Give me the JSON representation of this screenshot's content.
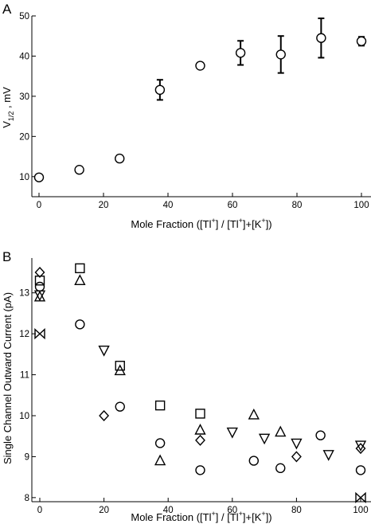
{
  "chart_data": [
    {
      "panel": "A",
      "type": "scatter",
      "xlabel": "Mole Fraction ([Tl+] / [Tl+]+[K+])",
      "ylabel": "V1/2 , mV",
      "xlim": [
        0,
        100
      ],
      "ylim": [
        5,
        50
      ],
      "xticks": [
        0,
        20,
        40,
        60,
        80,
        100
      ],
      "yticks": [
        10,
        20,
        30,
        40,
        50
      ],
      "grid": false,
      "series": [
        {
          "marker": "circle",
          "points": [
            {
              "x": 0,
              "y": 9.8,
              "err": 0
            },
            {
              "x": 12.5,
              "y": 11.7,
              "err": 0
            },
            {
              "x": 25,
              "y": 14.5,
              "err": 0.8
            },
            {
              "x": 37.5,
              "y": 31.6,
              "err": 2.5
            },
            {
              "x": 50,
              "y": 37.6,
              "err": 0
            },
            {
              "x": 62.5,
              "y": 40.8,
              "err": 3.0
            },
            {
              "x": 75,
              "y": 40.4,
              "err": 4.6
            },
            {
              "x": 87.5,
              "y": 44.5,
              "err": 4.9
            },
            {
              "x": 100,
              "y": 43.7,
              "err": 1.1
            }
          ]
        }
      ]
    },
    {
      "panel": "B",
      "type": "scatter",
      "xlabel": "Mole Fraction ([Tl+] / [Tl+]+[K+])",
      "ylabel": "Single Channel Outward Current (pA)",
      "xlim": [
        0,
        100
      ],
      "ylim": [
        7.9,
        13.85
      ],
      "xticks": [
        0,
        20,
        40,
        60,
        80,
        100
      ],
      "yticks": [
        8,
        9,
        10,
        11,
        12,
        13
      ],
      "grid": false,
      "series": [
        {
          "marker": "circle",
          "points": [
            [
              0,
              13.15
            ],
            [
              12.5,
              12.23
            ],
            [
              25,
              10.22
            ],
            [
              37.5,
              9.33
            ],
            [
              50,
              8.67
            ],
            [
              66.7,
              8.9
            ],
            [
              75,
              8.72
            ],
            [
              87.5,
              9.52
            ],
            [
              100,
              8.67
            ]
          ]
        },
        {
          "marker": "square",
          "points": [
            [
              0,
              13.3
            ],
            [
              12.5,
              13.6
            ],
            [
              25,
              11.22
            ],
            [
              37.5,
              10.25
            ],
            [
              50,
              10.05
            ]
          ]
        },
        {
          "marker": "triangle-up",
          "points": [
            [
              0,
              12.9
            ],
            [
              12.5,
              13.3
            ],
            [
              25,
              11.1
            ],
            [
              37.5,
              8.9
            ],
            [
              50,
              9.65
            ],
            [
              66.7,
              10.02
            ],
            [
              75,
              9.6
            ]
          ]
        },
        {
          "marker": "triangle-down",
          "points": [
            [
              0,
              12.95
            ],
            [
              20,
              11.6
            ],
            [
              60,
              9.6
            ],
            [
              70,
              9.45
            ],
            [
              80,
              9.33
            ],
            [
              90,
              9.05
            ],
            [
              100,
              9.28
            ]
          ]
        },
        {
          "marker": "diamond",
          "points": [
            [
              0,
              13.5
            ],
            [
              20,
              10.0
            ],
            [
              50,
              9.4
            ],
            [
              80,
              9.0
            ],
            [
              100,
              9.2
            ]
          ]
        },
        {
          "marker": "bowtie",
          "points": [
            [
              0,
              12.0
            ],
            [
              100,
              8.0
            ]
          ]
        }
      ]
    }
  ],
  "panels": {
    "a": {
      "letter": "A",
      "xlabel_prefix": "Mole Fraction ([Tl",
      "xlabel_mid": "] /  [Tl",
      "xlabel_mid2": "]+[K",
      "xlabel_end": "])",
      "sup": "+",
      "ylabel_main": "V",
      "ylabel_sub": "1/2",
      "ylabel_end": " , mV"
    },
    "b": {
      "letter": "B",
      "xlabel_prefix": "Mole Fraction ([Tl",
      "xlabel_mid": "] /  [Tl",
      "xlabel_mid2": "]+[K",
      "xlabel_end": "])",
      "sup": "+",
      "ylabel": "Single Channel Outward Current (pA)"
    }
  }
}
